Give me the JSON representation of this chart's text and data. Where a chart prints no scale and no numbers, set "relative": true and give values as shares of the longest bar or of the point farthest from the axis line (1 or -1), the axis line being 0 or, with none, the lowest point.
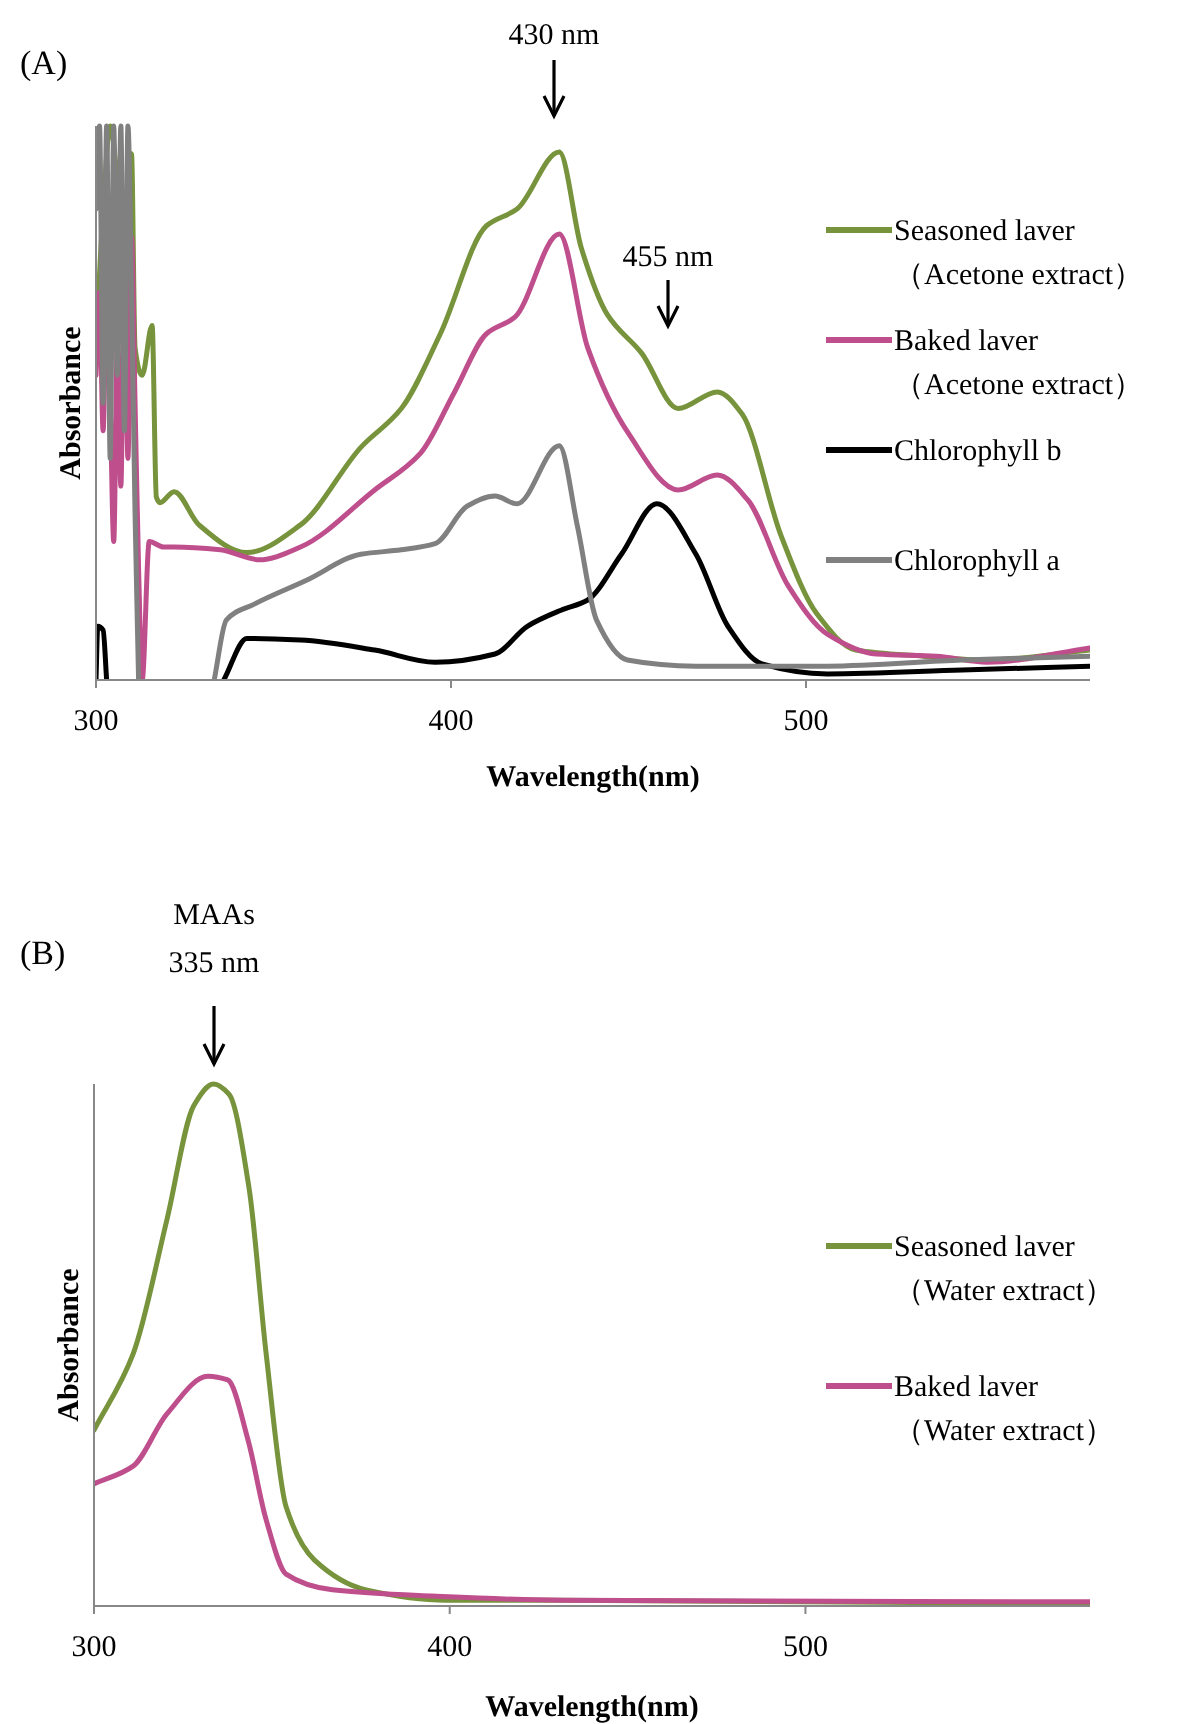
{
  "chart_data": [
    {
      "type": "line",
      "title": "(A)",
      "xlabel": "Wavelength(nm)",
      "ylabel": "Absorbance",
      "relative": true,
      "xlim": [
        300,
        580
      ],
      "xticks": [
        300,
        400,
        500
      ],
      "legend": "right",
      "grid": false,
      "annotations": [
        "430 nm",
        "455 nm"
      ],
      "series": [
        {
          "name": "Seasoned laver\n（Acetone extract）",
          "color": "#77933c",
          "x": [
            300,
            302,
            304,
            306,
            308,
            310,
            311,
            313,
            315.8,
            317,
            318,
            322,
            329,
            342.5,
            357.6,
            374.6,
            386,
            397,
            410,
            418.6,
            430.5,
            436.7,
            444,
            453.7,
            464,
            475,
            482,
            493,
            503,
            514,
            533,
            551,
            580
          ],
          "values": [
            0.6,
            0.85,
            1.0,
            0.9,
            0.7,
            0.95,
            0.6,
            0.55,
            0.64,
            0.33,
            0.32,
            0.34,
            0.28,
            0.23,
            0.28,
            0.42,
            0.49,
            0.625,
            0.82,
            0.85,
            0.953,
            0.78,
            0.66,
            0.59,
            0.49,
            0.52,
            0.48,
            0.26,
            0.12,
            0.054,
            0.043,
            0.036,
            0.054
          ]
        },
        {
          "name": "Baked laver\n（Acetone extract）",
          "color": "#bf4f8c",
          "x": [
            300,
            301,
            302,
            303,
            304,
            305,
            306,
            307,
            308,
            309,
            310,
            311,
            312,
            313,
            315,
            319,
            322,
            335,
            346,
            357.6,
            378.5,
            391.5,
            401,
            410,
            418,
            430.5,
            438.5,
            450,
            464,
            475,
            483.6,
            495,
            506,
            519.8,
            536.7,
            551,
            580
          ],
          "values": [
            0.55,
            0.7,
            0.45,
            0.7,
            0.5,
            0.25,
            0.6,
            0.35,
            0.76,
            0.4,
            0.8,
            0.5,
            0.2,
            0.0,
            0.25,
            0.24,
            0.24,
            0.235,
            0.217,
            0.24,
            0.343,
            0.41,
            0.52,
            0.625,
            0.655,
            0.805,
            0.6,
            0.445,
            0.343,
            0.37,
            0.325,
            0.17,
            0.083,
            0.047,
            0.043,
            0.032,
            0.058
          ]
        },
        {
          "color": "#000000",
          "x": [
            300,
            300.5,
            302,
            303
          ],
          "values": [
            0.0,
            0.097,
            0.09,
            0.0
          ]
        },
        {
          "name": "Chlorophyll b",
          "color": "#000000",
          "x": [
            336,
            342.5,
            357.6,
            378.5,
            395.5,
            412.4,
            421.5,
            431,
            438.4,
            448,
            458,
            469,
            478,
            487.6,
            506,
            544,
            580
          ],
          "values": [
            0.0,
            0.075,
            0.072,
            0.054,
            0.032,
            0.047,
            0.097,
            0.126,
            0.144,
            0.227,
            0.318,
            0.227,
            0.097,
            0.029,
            0.011,
            0.018,
            0.025
          ]
        },
        {
          "color": "#808080",
          "x": [
            300,
            301,
            302,
            303,
            304,
            305,
            306,
            307,
            308,
            309,
            310,
            311,
            312
          ],
          "values": [
            0.85,
            1.0,
            0.5,
            1.0,
            0.4,
            1.0,
            0.55,
            1.0,
            0.45,
            1.0,
            0.7,
            0.3,
            0.0
          ]
        },
        {
          "name": "Chlorophyll a",
          "color": "#808080",
          "x": [
            333.3,
            336.7,
            344.6,
            359.3,
            374.6,
            386,
            395.5,
            404.6,
            412.4,
            418.6,
            430.5,
            435.6,
            441,
            449.7,
            469,
            506,
            544,
            580
          ],
          "values": [
            0.0,
            0.108,
            0.137,
            0.18,
            0.227,
            0.235,
            0.246,
            0.314,
            0.332,
            0.318,
            0.423,
            0.278,
            0.108,
            0.036,
            0.025,
            0.025,
            0.036,
            0.043
          ]
        }
      ]
    },
    {
      "type": "line",
      "title": "(B)",
      "xlabel": "Wavelength(nm)",
      "ylabel": "Absorbance",
      "relative": true,
      "xlim": [
        300,
        580
      ],
      "xticks": [
        300,
        400,
        500
      ],
      "legend": "right",
      "grid": false,
      "annotations": [
        "MAAs\n335 nm"
      ],
      "series": [
        {
          "name": "Seasoned laver\n（Water  extract）",
          "color": "#77933c",
          "x": [
            300,
            311,
            320.5,
            328,
            333.6,
            338,
            343.6,
            348.4,
            354,
            362,
            376.5,
            399,
            431.6,
            580
          ],
          "values": [
            0.337,
            0.483,
            0.74,
            0.958,
            1.0,
            0.98,
            0.8,
            0.483,
            0.19,
            0.088,
            0.031,
            0.011,
            0.011,
            0.004
          ]
        },
        {
          "name": "Baked laver\n（Water extract）",
          "color": "#bf4f8c",
          "x": [
            300,
            311,
            320.5,
            332,
            337.6,
            343.3,
            348.4,
            354,
            367,
            395,
            431.6,
            580
          ],
          "values": [
            0.234,
            0.268,
            0.368,
            0.44,
            0.433,
            0.318,
            0.165,
            0.061,
            0.031,
            0.019,
            0.011,
            0.008
          ]
        }
      ]
    }
  ]
}
